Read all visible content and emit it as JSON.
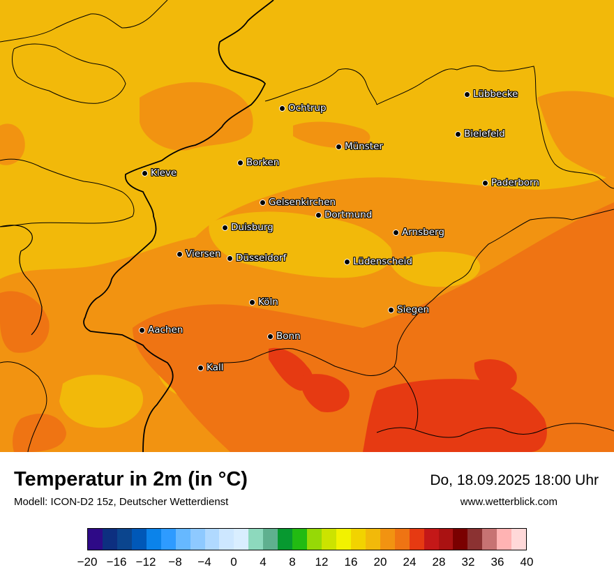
{
  "title": "Temperatur in 2m (in °C)",
  "subtitle": "Modell: ICON-D2 15z, Deutscher Wetterdienst",
  "datetime": "Do, 18.09.2025 18:00 Uhr",
  "website": "www.wetterblick.com",
  "cities": [
    {
      "name": "Lübbecke"
    },
    {
      "name": "Ochtrup"
    },
    {
      "name": "Bielefeld"
    },
    {
      "name": "Münster"
    },
    {
      "name": "Borken"
    },
    {
      "name": "Kleve"
    },
    {
      "name": "Paderborn"
    },
    {
      "name": "Gelsenkirchen"
    },
    {
      "name": "Dortmund"
    },
    {
      "name": "Duisburg"
    },
    {
      "name": "Arnsberg"
    },
    {
      "name": "Viersen"
    },
    {
      "name": "Düsseldorf"
    },
    {
      "name": "Lüdenscheid"
    },
    {
      "name": "Köln"
    },
    {
      "name": "Siegen"
    },
    {
      "name": "Aachen"
    },
    {
      "name": "Bonn"
    },
    {
      "name": "Kall"
    }
  ],
  "legend": {
    "unit": "°C",
    "min": -20,
    "max": 40,
    "step": 2,
    "colors": [
      "#2e0a87",
      "#0d2f80",
      "#0b458e",
      "#0058b8",
      "#0b83ea",
      "#2e9bff",
      "#66b8ff",
      "#8ec9ff",
      "#b0d9ff",
      "#cde7ff",
      "#d9eeff",
      "#8dd9bd",
      "#5fb08f",
      "#079930",
      "#22bb12",
      "#96d906",
      "#cce300",
      "#f2f200",
      "#f2d300",
      "#f2b90a",
      "#f29311",
      "#ef7413",
      "#e63a12",
      "#c41818",
      "#aa1212",
      "#7a0000",
      "#8b3232",
      "#c77373",
      "#ffb3b3",
      "#ffd9d9"
    ],
    "tick_labels": [
      "−20",
      "−16",
      "−12",
      "−8",
      "−4",
      "0",
      "4",
      "8",
      "12",
      "16",
      "20",
      "24",
      "28",
      "32",
      "36",
      "40"
    ]
  },
  "map_colors": {
    "t18": "#f2b90a",
    "t20": "#f29311",
    "t22": "#ef7413",
    "t24": "#e63a12",
    "border": "#000000"
  }
}
